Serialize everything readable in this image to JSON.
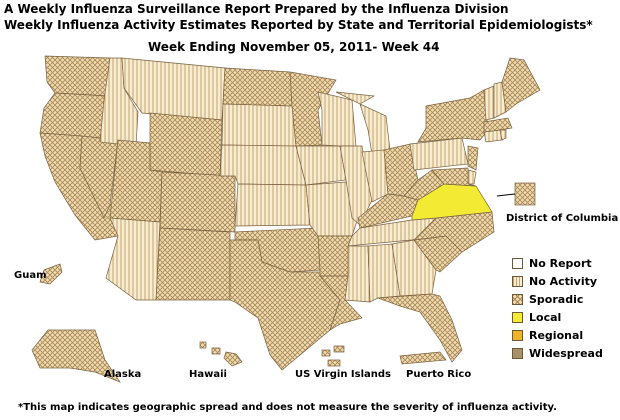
{
  "header": {
    "title_line1": "A Weekly Influenza Surveillance Report Prepared by the Influenza Division",
    "title_line2": "Weekly Influenza Activity Estimates Reported by State and Territorial Epidemiologists*",
    "week_line": "Week Ending November 05, 2011- Week 44"
  },
  "labels": {
    "dc": "District of Columbia",
    "guam": "Guam",
    "alaska": "Alaska",
    "hawaii": "Hawaii",
    "usvi": "US Virgin Islands",
    "pr": "Puerto Rico"
  },
  "legend": [
    {
      "label": "No Report",
      "pattern": "none",
      "color": "#ffffff"
    },
    {
      "label": "No Activity",
      "pattern": "stripes",
      "color": "#f3e3c4"
    },
    {
      "label": "Sporadic",
      "pattern": "crosshatch",
      "color": "#ecd9b0"
    },
    {
      "label": "Local",
      "pattern": "solid",
      "color": "#f2ea33"
    },
    {
      "label": "Regional",
      "pattern": "solid",
      "color": "#f0b42a"
    },
    {
      "label": "Widespread",
      "pattern": "solid",
      "color": "#a8926a"
    }
  ],
  "footnote": "*This map indicates geographic spread and does not measure the severity of influenza activity.",
  "states": {
    "WA": "sporadic",
    "OR": "sporadic",
    "CA": "sporadic",
    "NV": "sporadic",
    "ID": "no-activity",
    "MT": "no-activity",
    "WY": "sporadic",
    "UT": "sporadic",
    "AZ": "no-activity",
    "CO": "sporadic",
    "NM": "sporadic",
    "ND": "sporadic",
    "SD": "no-activity",
    "NE": "no-activity",
    "KS": "no-activity",
    "OK": "sporadic",
    "TX": "sporadic",
    "MN": "sporadic",
    "IA": "no-activity",
    "MO": "no-activity",
    "AR": "sporadic",
    "LA": "sporadic",
    "WI": "no-activity",
    "IL": "no-activity",
    "MI": "no-activity",
    "IN": "no-activity",
    "OH": "sporadic",
    "KY": "sporadic",
    "TN": "no-activity",
    "MS": "no-activity",
    "AL": "no-activity",
    "GA": "no-activity",
    "FL": "sporadic",
    "SC": "sporadic",
    "NC": "sporadic",
    "VA": "local",
    "WV": "sporadic",
    "PA": "no-activity",
    "NY": "sporadic",
    "NJ": "sporadic",
    "DE": "no-activity",
    "MD": "sporadic",
    "CT": "no-activity",
    "RI": "no-activity",
    "MA": "sporadic",
    "VT": "no-activity",
    "NH": "no-activity",
    "ME": "sporadic",
    "DC": "sporadic",
    "AK": "sporadic",
    "HI": "sporadic",
    "GU": "sporadic",
    "PR": "sporadic",
    "VI": "sporadic"
  }
}
